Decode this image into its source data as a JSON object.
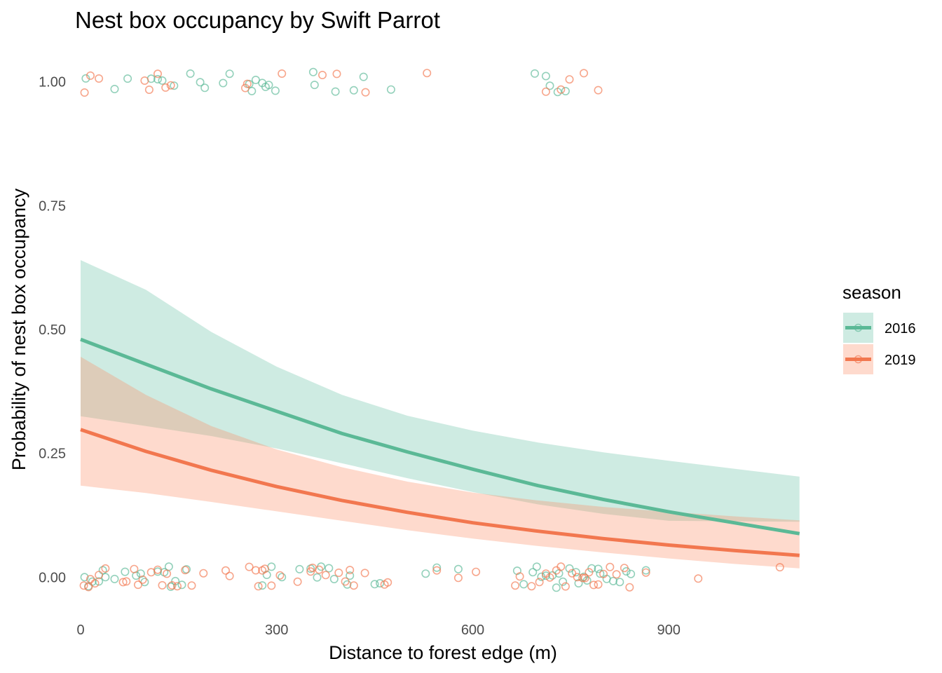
{
  "chart_data": {
    "type": "line",
    "subtype": "logistic regression fit with confidence ribbons and jittered binary observations",
    "title": "Nest box occupancy by Swift Parrot",
    "xlabel": "Distance to forest edge (m)",
    "ylabel": "Probability of nest box occupancy",
    "xlim": [
      -15,
      1125
    ],
    "ylim": [
      -0.08,
      1.08
    ],
    "x_ticks": [
      0,
      300,
      600,
      900
    ],
    "x_tick_labels": [
      "0",
      "300",
      "600",
      "900"
    ],
    "y_ticks": [
      0,
      0.25,
      0.5,
      0.75,
      1.0
    ],
    "y_tick_labels": [
      "0.00",
      "0.25",
      "0.50",
      "0.75",
      "1.00"
    ],
    "grid": false,
    "legend": {
      "title": "season",
      "position": "right",
      "entries": [
        "2016",
        "2019"
      ]
    },
    "series": [
      {
        "name": "2016",
        "color": "#5bb996",
        "ribbon_color": "#66c2a5",
        "fit": {
          "x": [
            0,
            100,
            200,
            300,
            400,
            500,
            600,
            700,
            800,
            900,
            1000,
            1100
          ],
          "y": [
            0.48,
            0.43,
            0.38,
            0.335,
            0.29,
            0.253,
            0.218,
            0.185,
            0.157,
            0.132,
            0.11,
            0.088
          ],
          "lower": [
            0.325,
            0.305,
            0.285,
            0.26,
            0.23,
            0.2,
            0.172,
            0.147,
            0.128,
            0.114,
            0.113,
            0.112
          ],
          "upper": [
            0.64,
            0.58,
            0.495,
            0.425,
            0.368,
            0.326,
            0.296,
            0.272,
            0.252,
            0.235,
            0.219,
            0.203
          ]
        },
        "points": {
          "occupied_x": [
            8,
            52,
            72,
            108,
            118,
            125,
            143,
            168,
            183,
            190,
            218,
            228,
            258,
            262,
            268,
            278,
            283,
            288,
            298,
            356,
            358,
            390,
            418,
            433,
            475,
            695,
            712,
            718,
            730,
            742
          ],
          "unoccupied_x": [
            6,
            12,
            18,
            28,
            34,
            38,
            52,
            68,
            85,
            92,
            98,
            118,
            128,
            135,
            138,
            145,
            155,
            162,
            278,
            285,
            292,
            308,
            335,
            352,
            362,
            368,
            380,
            388,
            408,
            412,
            450,
            458,
            528,
            545,
            578,
            668,
            678,
            692,
            698,
            705,
            712,
            722,
            728,
            732,
            738,
            748,
            758,
            762,
            770,
            775,
            782,
            792,
            795,
            805,
            815,
            825,
            835,
            842,
            865
          ]
        }
      },
      {
        "name": "2019",
        "color": "#f2774f",
        "ribbon_color": "#fc8d62",
        "fit": {
          "x": [
            0,
            100,
            200,
            300,
            400,
            500,
            600,
            700,
            800,
            900,
            1000,
            1100
          ],
          "y": [
            0.298,
            0.254,
            0.216,
            0.183,
            0.155,
            0.131,
            0.11,
            0.093,
            0.078,
            0.065,
            0.054,
            0.044
          ],
          "lower": [
            0.185,
            0.17,
            0.152,
            0.133,
            0.114,
            0.095,
            0.078,
            0.063,
            0.05,
            0.038,
            0.027,
            0.018
          ],
          "upper": [
            0.445,
            0.368,
            0.305,
            0.258,
            0.222,
            0.193,
            0.171,
            0.155,
            0.142,
            0.132,
            0.123,
            0.115
          ]
        },
        "points": {
          "occupied_x": [
            6,
            15,
            28,
            98,
            105,
            118,
            130,
            138,
            252,
            255,
            308,
            370,
            392,
            436,
            530,
            712,
            735,
            748,
            770,
            792
          ],
          "unoccupied_x": [
            5,
            12,
            15,
            22,
            28,
            38,
            65,
            70,
            82,
            88,
            95,
            108,
            118,
            125,
            132,
            140,
            148,
            160,
            170,
            188,
            222,
            228,
            258,
            268,
            272,
            278,
            282,
            292,
            305,
            332,
            352,
            355,
            365,
            375,
            395,
            405,
            412,
            418,
            435,
            465,
            470,
            545,
            578,
            605,
            665,
            672,
            690,
            702,
            712,
            718,
            728,
            735,
            742,
            752,
            760,
            768,
            772,
            778,
            785,
            792,
            800,
            810,
            820,
            832,
            840,
            865,
            945,
            1070
          ]
        }
      }
    ]
  }
}
